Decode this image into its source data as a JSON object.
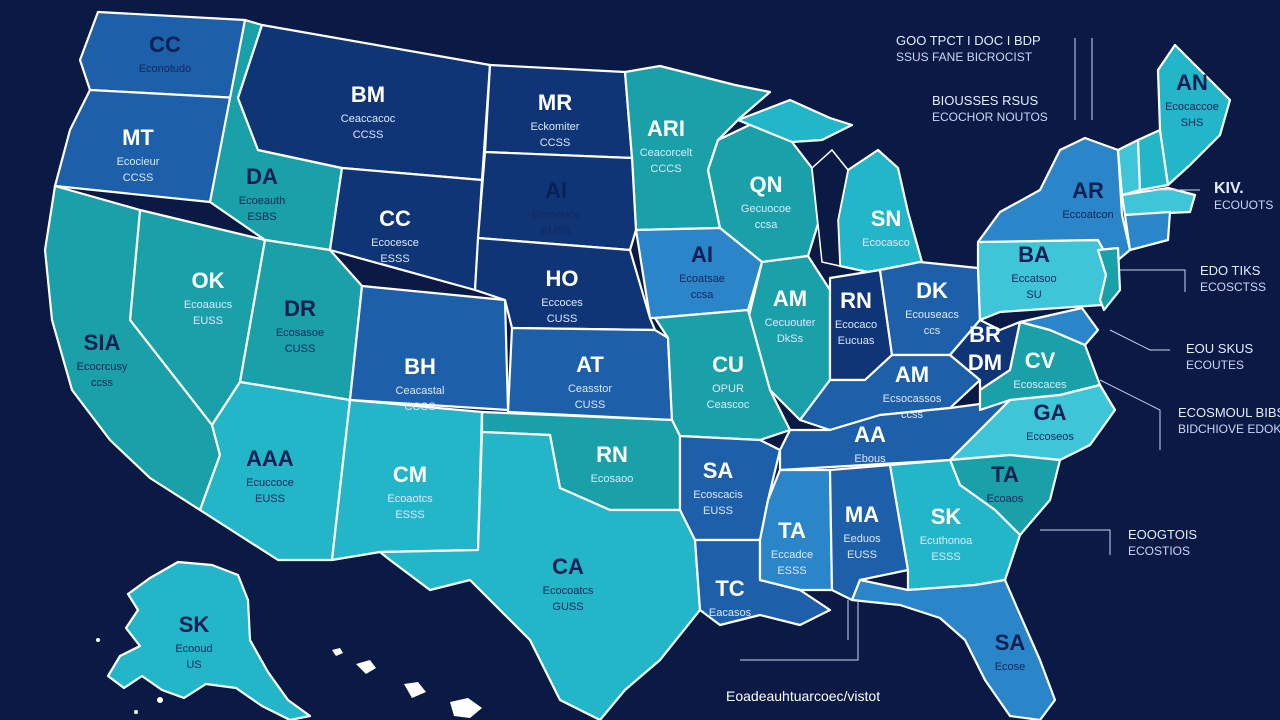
{
  "colors": {
    "background": "#0b1a45",
    "dark_blue": "#0f3576",
    "mid_blue": "#1d5fa8",
    "bright_blue": "#2a86c9",
    "teal": "#1aa0a8",
    "light_teal": "#23b6c8",
    "cyan": "#3ec6d8"
  },
  "states": [
    {
      "abbr": "CC",
      "sub": "Econotudo",
      "sub2": ""
    },
    {
      "abbr": "MT",
      "sub": "Ecocieur",
      "sub2": "CCSS"
    },
    {
      "abbr": "BM",
      "sub": "Ceaccacoc",
      "sub2": "CCSS"
    },
    {
      "abbr": "MR",
      "sub": "Eckomiter",
      "sub2": "CCSS"
    },
    {
      "abbr": "ARI",
      "sub": "Ceacorcelt",
      "sub2": "CCCS"
    },
    {
      "abbr": "QN",
      "sub": "Gecuocoe",
      "sub2": "ccsa"
    },
    {
      "abbr": "SN",
      "sub": "Ecocasco",
      "sub2": ""
    },
    {
      "abbr": "AN",
      "sub": "Ecocaccoe",
      "sub2": "SHS"
    },
    {
      "abbr": "DA",
      "sub": "Ecoeauth",
      "sub2": "ESBS"
    },
    {
      "abbr": "CC",
      "sub": "Ecocesce",
      "sub2": "ESSS"
    },
    {
      "abbr": "AI",
      "sub": "Ecoatsae",
      "sub2": "ccsa"
    },
    {
      "abbr": "AI",
      "sub": "Ecosouce",
      "sub2": "EUSS"
    },
    {
      "abbr": "HO",
      "sub": "Eccoces",
      "sub2": "CUSS"
    },
    {
      "abbr": "AR",
      "sub": "Eccoatcon",
      "sub2": ""
    },
    {
      "abbr": "OK",
      "sub": "Ecoaaucs",
      "sub2": "EUSS"
    },
    {
      "abbr": "DR",
      "sub": "Ecosasoe",
      "sub2": "CUSS"
    },
    {
      "abbr": "SIA",
      "sub": "Ecocrcusy",
      "sub2": "ccss"
    },
    {
      "abbr": "BH",
      "sub": "Ceacastal",
      "sub2": "CCCS"
    },
    {
      "abbr": "AT",
      "sub": "Ceasstor",
      "sub2": "CUSS"
    },
    {
      "abbr": "AM",
      "sub": "Cecuouter",
      "sub2": "DkSs"
    },
    {
      "abbr": "RN",
      "sub": "Ecocaco",
      "sub2": "Eucuas"
    },
    {
      "abbr": "DK",
      "sub": "Ecouseacs",
      "sub2": "ccs"
    },
    {
      "abbr": "BA",
      "sub": "Eccatsoo",
      "sub2": "SU"
    },
    {
      "abbr": "BR",
      "sub": "",
      "sub2": ""
    },
    {
      "abbr": "DM",
      "sub": "",
      "sub2": ""
    },
    {
      "abbr": "CV",
      "sub": "Ecoscaces",
      "sub2": ""
    },
    {
      "abbr": "GA",
      "sub": "Eccoseos",
      "sub2": ""
    },
    {
      "abbr": "AM",
      "sub": "Ecsocassos",
      "sub2": "ccss"
    },
    {
      "abbr": "AA",
      "sub": "Ebous",
      "sub2": ""
    },
    {
      "abbr": "CU",
      "sub": "OPUR",
      "sub2": "Ceascoc"
    },
    {
      "abbr": "AAA",
      "sub": "Ecuccoce",
      "sub2": "EUSS"
    },
    {
      "abbr": "CM",
      "sub": "Ecoaotcs",
      "sub2": "ESSS"
    },
    {
      "abbr": "RN",
      "sub": "Ecosaoo",
      "sub2": ""
    },
    {
      "abbr": "SA",
      "sub": "Ecoscacis",
      "sub2": "EUSS"
    },
    {
      "abbr": "TA",
      "sub": "Eccadce",
      "sub2": "ESSS"
    },
    {
      "abbr": "MA",
      "sub": "Eeduos",
      "sub2": "EUSS"
    },
    {
      "abbr": "SK",
      "sub": "Ecuthonoa",
      "sub2": "ESSS"
    },
    {
      "abbr": "TA",
      "sub": "Ecoaos",
      "sub2": ""
    },
    {
      "abbr": "CA",
      "sub": "Ecocoatcs",
      "sub2": "GUSS"
    },
    {
      "abbr": "TC",
      "sub": "Eacasos",
      "sub2": ""
    },
    {
      "abbr": "SK",
      "sub": "Ecooud",
      "sub2": "US"
    },
    {
      "abbr": "SA",
      "sub": "Ecose",
      "sub2": ""
    }
  ],
  "callouts": [
    {
      "line1": "GOO TPCT I DOC I BDP",
      "line2": "SSUS FANE BICROCIST"
    },
    {
      "line1": "BIOUSSES RSUS",
      "line2": "ECOCHOR NOUTOS"
    },
    {
      "line1": "KIV.",
      "line2": "ECOUOTS"
    },
    {
      "line1": "EDO TIKS",
      "line2": "ECOSCTSS"
    },
    {
      "line1": "EOU SKUS",
      "line2": "ECOUTES"
    },
    {
      "line1": "ECOSMOUL BIBS",
      "line2": "BIDCHIOVE EDOKHOE"
    },
    {
      "line1": "EOOGTOIS",
      "line2": "ECOSTIOS"
    }
  ],
  "bottom_caption": "Eoadeauhtuarcoec/vistot"
}
